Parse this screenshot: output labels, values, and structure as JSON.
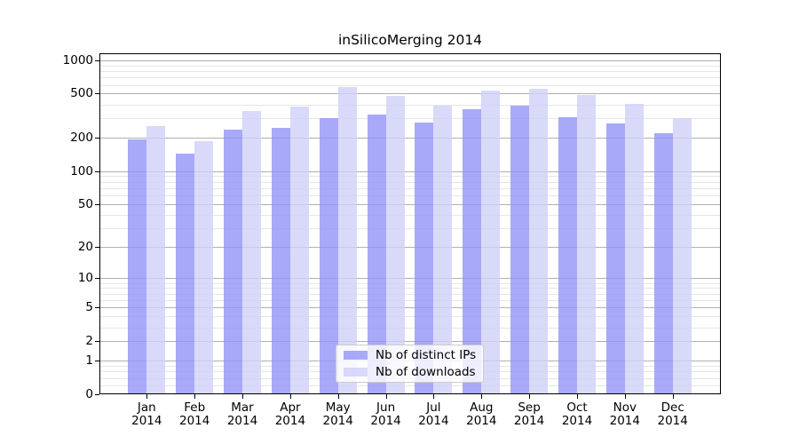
{
  "figure": {
    "title": "inSilicoMerging 2014"
  },
  "legend": {
    "items": [
      {
        "label": "Nb of distinct IPs",
        "series": "distinct_ips"
      },
      {
        "label": "Nb of downloads",
        "series": "downloads"
      }
    ]
  },
  "colors": {
    "distinct_ips": "#9494f8",
    "downloads": "#d0d0f7",
    "bar_opacity": 0.8,
    "major_grid": "#b0b0b0",
    "minor_grid": "#e6e6e6",
    "axis": "#000000",
    "text": "#000000"
  },
  "chart_data": {
    "type": "bar",
    "title": "inSilicoMerging 2014",
    "categories": [
      {
        "month": "Jan",
        "year": "2014"
      },
      {
        "month": "Feb",
        "year": "2014"
      },
      {
        "month": "Mar",
        "year": "2014"
      },
      {
        "month": "Apr",
        "year": "2014"
      },
      {
        "month": "May",
        "year": "2014"
      },
      {
        "month": "Jun",
        "year": "2014"
      },
      {
        "month": "Jul",
        "year": "2014"
      },
      {
        "month": "Aug",
        "year": "2014"
      },
      {
        "month": "Sep",
        "year": "2014"
      },
      {
        "month": "Oct",
        "year": "2014"
      },
      {
        "month": "Nov",
        "year": "2014"
      },
      {
        "month": "Dec",
        "year": "2014"
      }
    ],
    "series": [
      {
        "name": "Nb of distinct IPs",
        "color_key": "distinct_ips",
        "values": [
          195,
          145,
          240,
          250,
          305,
          330,
          275,
          365,
          395,
          308,
          273,
          222
        ]
      },
      {
        "name": "Nb of downloads",
        "color_key": "downloads",
        "values": [
          260,
          190,
          353,
          385,
          580,
          480,
          395,
          535,
          560,
          495,
          410,
          303
        ]
      }
    ],
    "y_axis": {
      "scale": "log1p",
      "tick_labels": [
        "0",
        "1",
        "2",
        "5",
        "10",
        "20",
        "50",
        "100",
        "200",
        "500",
        "1000"
      ],
      "tick_values": [
        0,
        1,
        2,
        5,
        10,
        20,
        50,
        100,
        200,
        500,
        1000
      ],
      "minor_tick_values": [
        0.2,
        0.4,
        0.6,
        0.8,
        3,
        4,
        6,
        7,
        8,
        9,
        30,
        40,
        60,
        70,
        80,
        90,
        300,
        400,
        600,
        700,
        800,
        900
      ],
      "range": [
        0,
        1150
      ]
    },
    "x_axis": {
      "range": [
        -1,
        12
      ]
    },
    "grid": true,
    "legend_position": "lower center"
  }
}
